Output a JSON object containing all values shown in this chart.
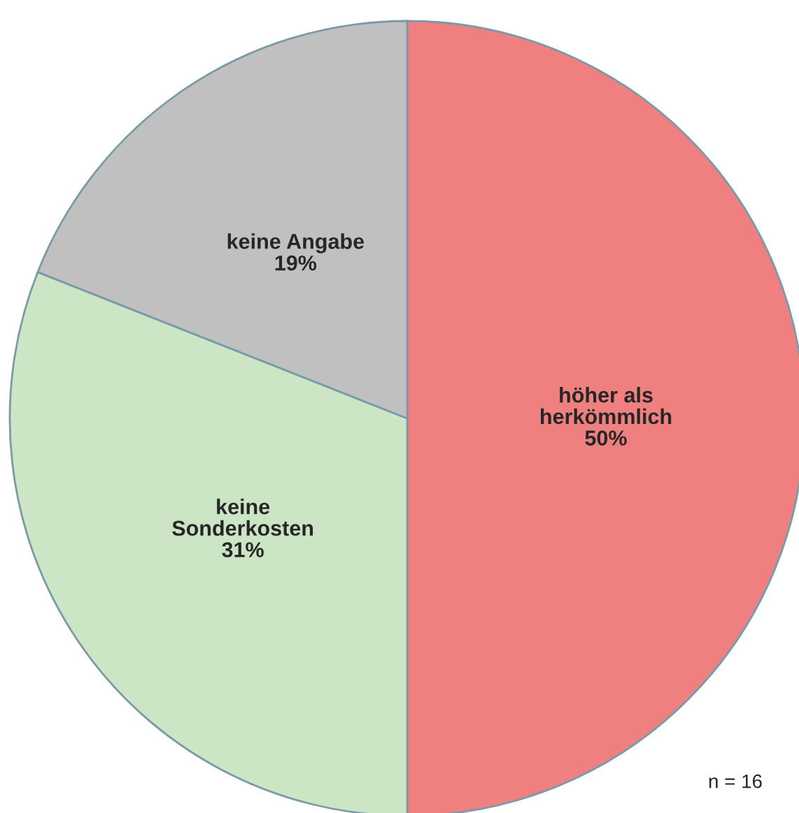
{
  "chart_data": {
    "type": "pie",
    "categories": [
      "höher als\nherkömmlich",
      "keine\nSonderkosten",
      "keine Angabe"
    ],
    "values": [
      50,
      31,
      19
    ],
    "value_labels": [
      "50%",
      "31%",
      "19%"
    ],
    "colors": [
      "#f08080",
      "#cce5c4",
      "#c0c0c0"
    ],
    "annotations": [
      "n = 16"
    ],
    "legend": false
  }
}
